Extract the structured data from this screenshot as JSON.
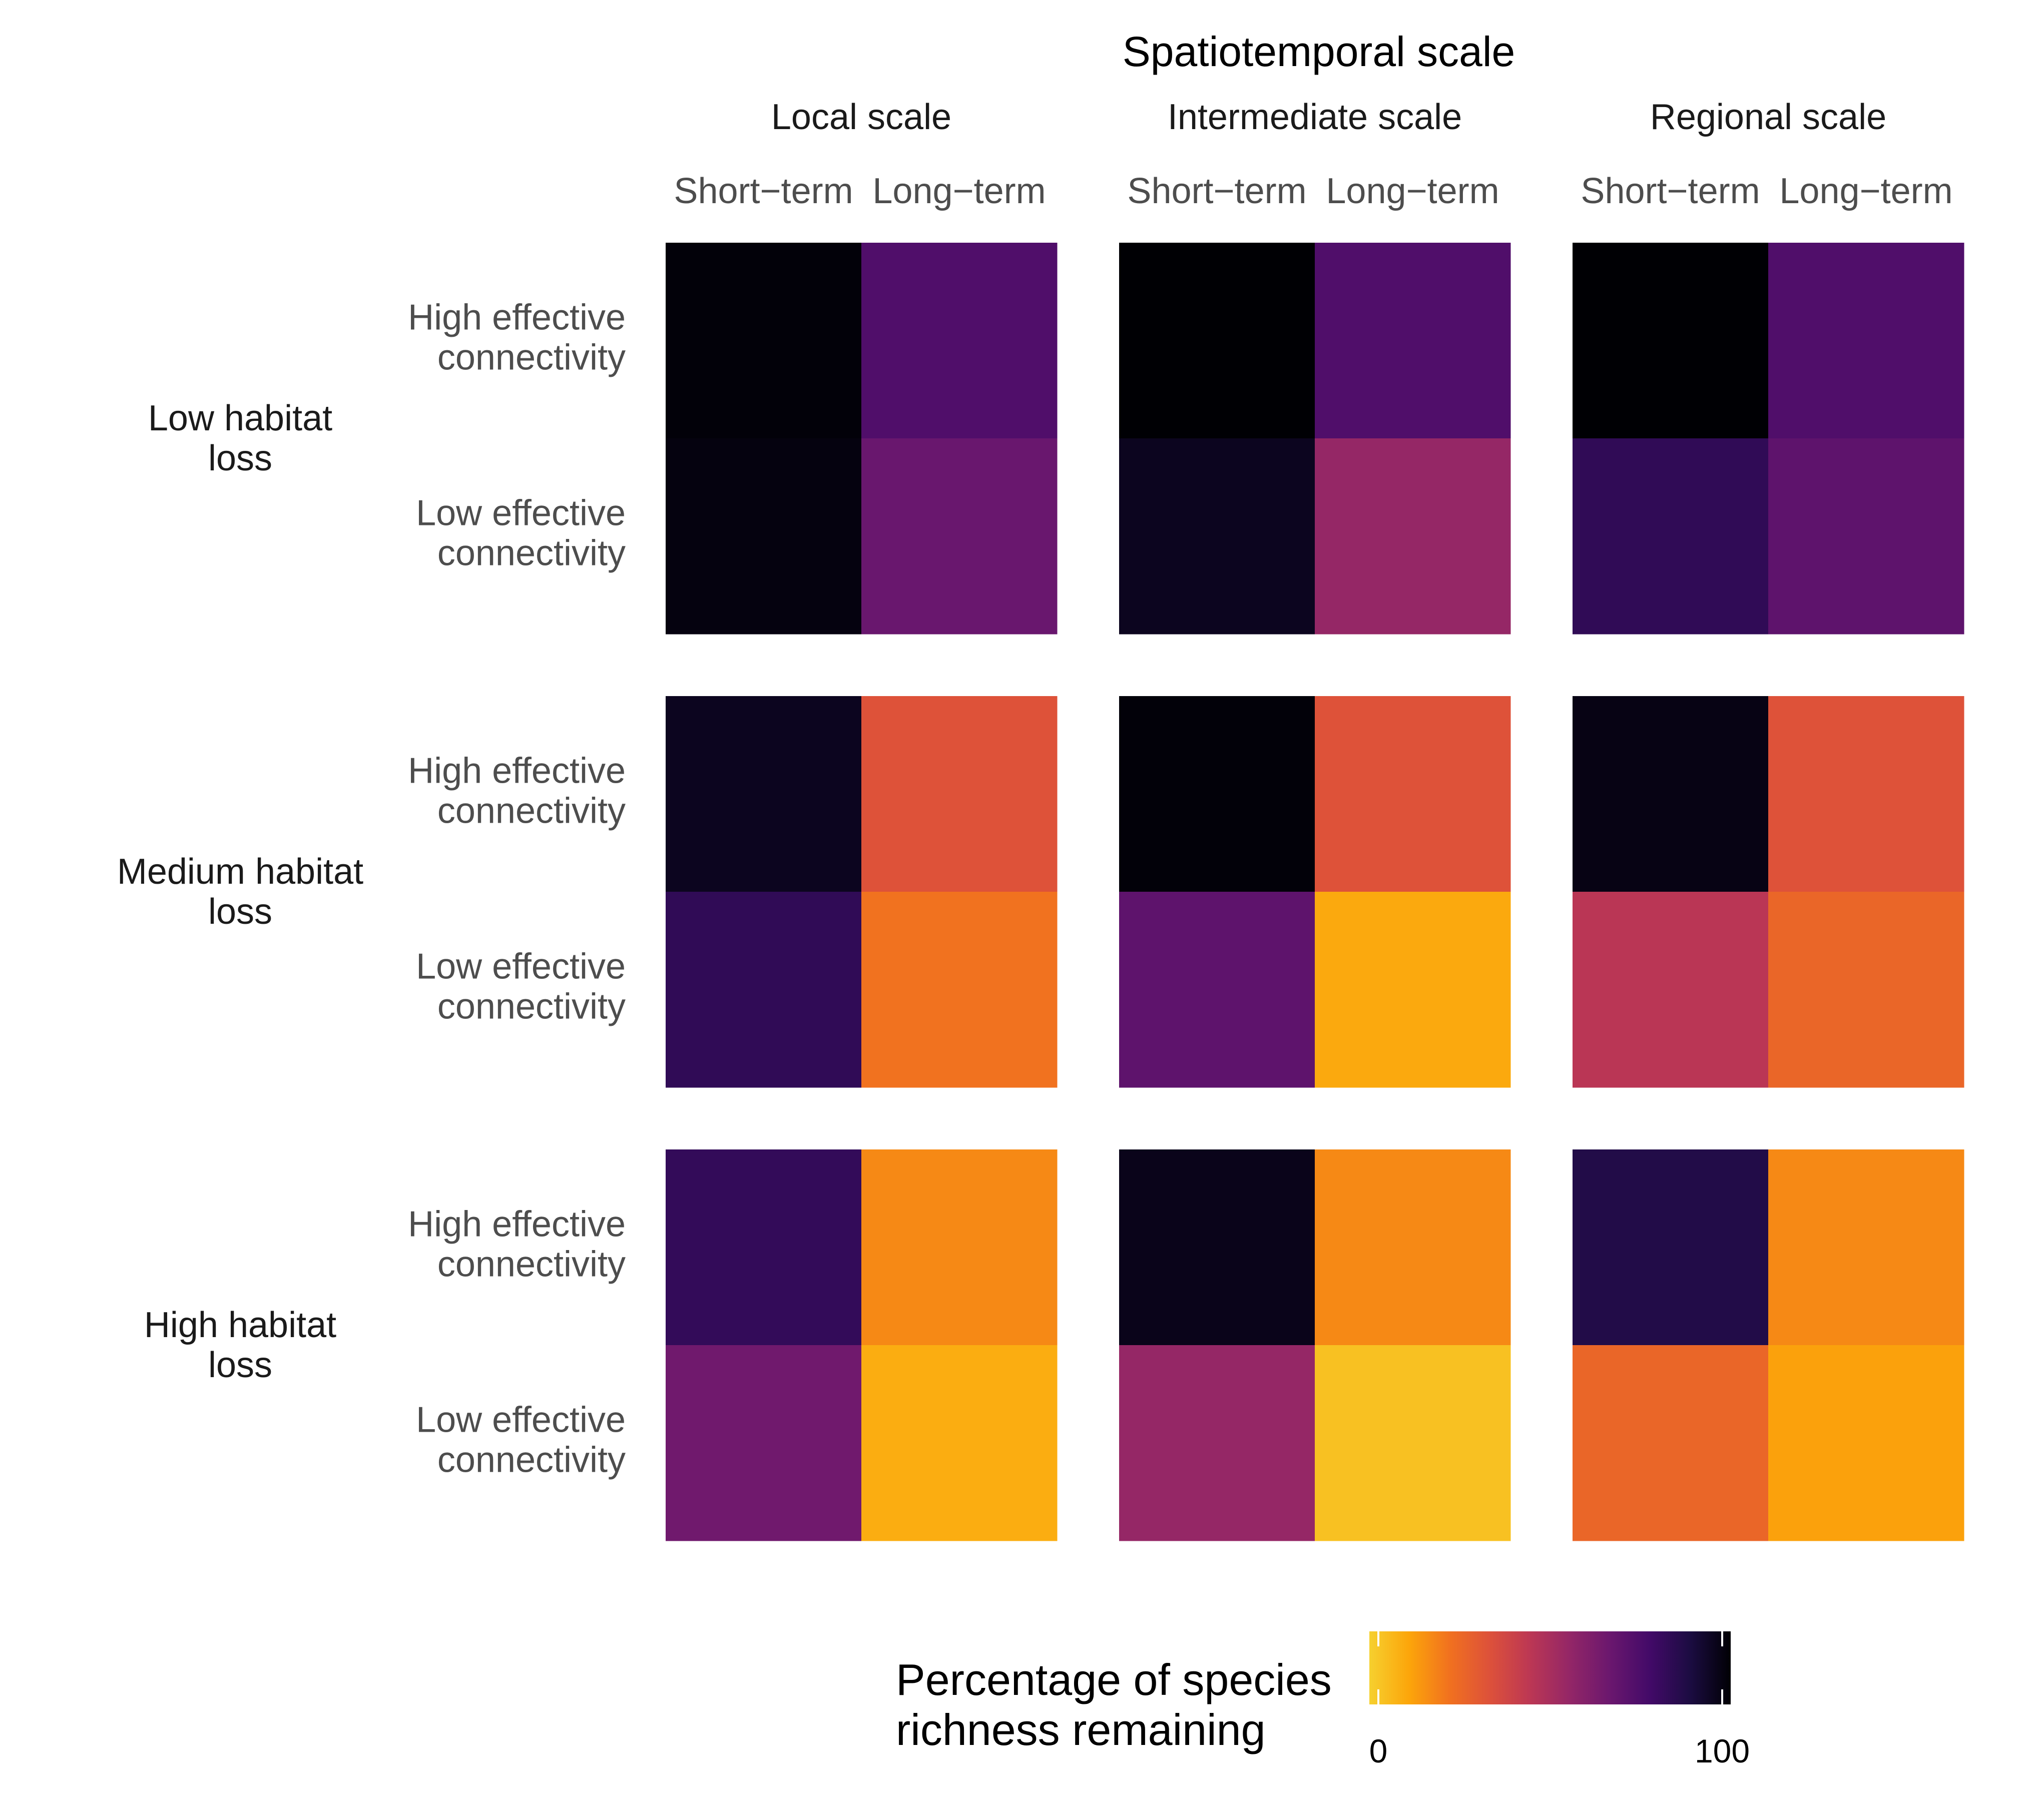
{
  "chart_data": {
    "type": "heatmap",
    "title": "Spatiotemporal scale",
    "columns_top": [
      "Local scale",
      "Intermediate scale",
      "Regional scale"
    ],
    "columns_sub": [
      "Short−term",
      "Long−term"
    ],
    "rows_outer": [
      [
        "Low habitat",
        "loss"
      ],
      [
        "Medium habitat",
        "loss"
      ],
      [
        "High habitat",
        "loss"
      ]
    ],
    "rows_inner": [
      [
        "High effective",
        "connectivity"
      ],
      [
        "Low effective",
        "connectivity"
      ]
    ],
    "values": [
      [
        [
          [
            99,
            74
          ],
          [
            98,
            67
          ]
        ],
        [
          [
            100,
            74
          ],
          [
            95,
            55
          ]
        ],
        [
          [
            100,
            74
          ],
          [
            83,
            70
          ]
        ]
      ],
      [
        [
          [
            95,
            33
          ],
          [
            83,
            22
          ]
        ],
        [
          [
            99,
            33
          ],
          [
            70,
            10
          ]
        ],
        [
          [
            97,
            33
          ],
          [
            45,
            26
          ]
        ]
      ],
      [
        [
          [
            82,
            17
          ],
          [
            65,
            9
          ]
        ],
        [
          [
            96,
            17
          ],
          [
            55,
            4
          ]
        ],
        [
          [
            87,
            17
          ],
          [
            26,
            12
          ]
        ]
      ]
    ],
    "legend": {
      "title_lines": [
        "Percentage of species",
        "richness remaining"
      ],
      "min": 0,
      "max": 100,
      "tick_labels": [
        "0",
        "100"
      ],
      "colormap": "inferno (reversed)",
      "stops": [
        "#f6d02f",
        "#fca50a",
        "#f1711f",
        "#dd513a",
        "#bc3754",
        "#932667",
        "#6a176e",
        "#420a68",
        "#1b0c41",
        "#000004"
      ]
    }
  }
}
